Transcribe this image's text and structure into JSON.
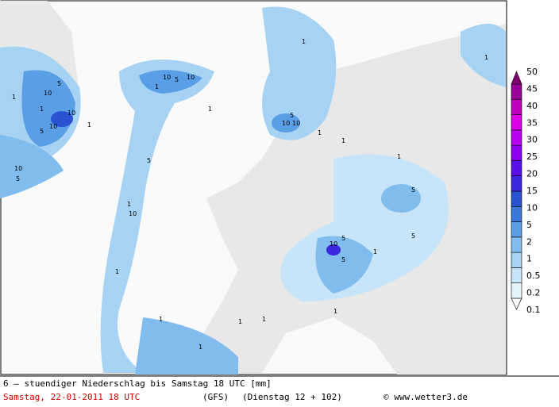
{
  "caption": {
    "title": "6 – stuendiger Niederschlag bis Samstag 18 UTC [mm]",
    "date": "Samstag, 22-01-2011   18 UTC",
    "model": "(GFS)",
    "run": "(Dienstag 12 + 102)",
    "credit": "© www.wetter3.de"
  },
  "legend": {
    "levels": [
      0.1,
      0.2,
      0.5,
      1,
      2,
      5,
      10,
      15,
      20,
      25,
      30,
      35,
      40,
      45,
      50
    ],
    "colors": [
      "#ffffff",
      "#e4f2fc",
      "#c8e4f8",
      "#a6d2f4",
      "#80bcee",
      "#5a9ee6",
      "#3a78dc",
      "#2a52d2",
      "#3a28dc",
      "#5a10e6",
      "#8a00ee",
      "#b800f0",
      "#dc00e6",
      "#c000c0",
      "#9a0098",
      "#800070"
    ]
  },
  "map_labels": [
    1,
    1,
    5,
    10,
    10,
    5,
    10,
    1,
    10,
    5,
    10,
    10,
    5,
    1,
    1,
    5,
    10,
    1,
    10,
    10,
    5,
    1,
    1,
    5,
    5,
    10,
    5,
    5,
    1,
    1,
    1,
    1,
    1,
    1,
    1,
    1,
    1,
    1
  ]
}
